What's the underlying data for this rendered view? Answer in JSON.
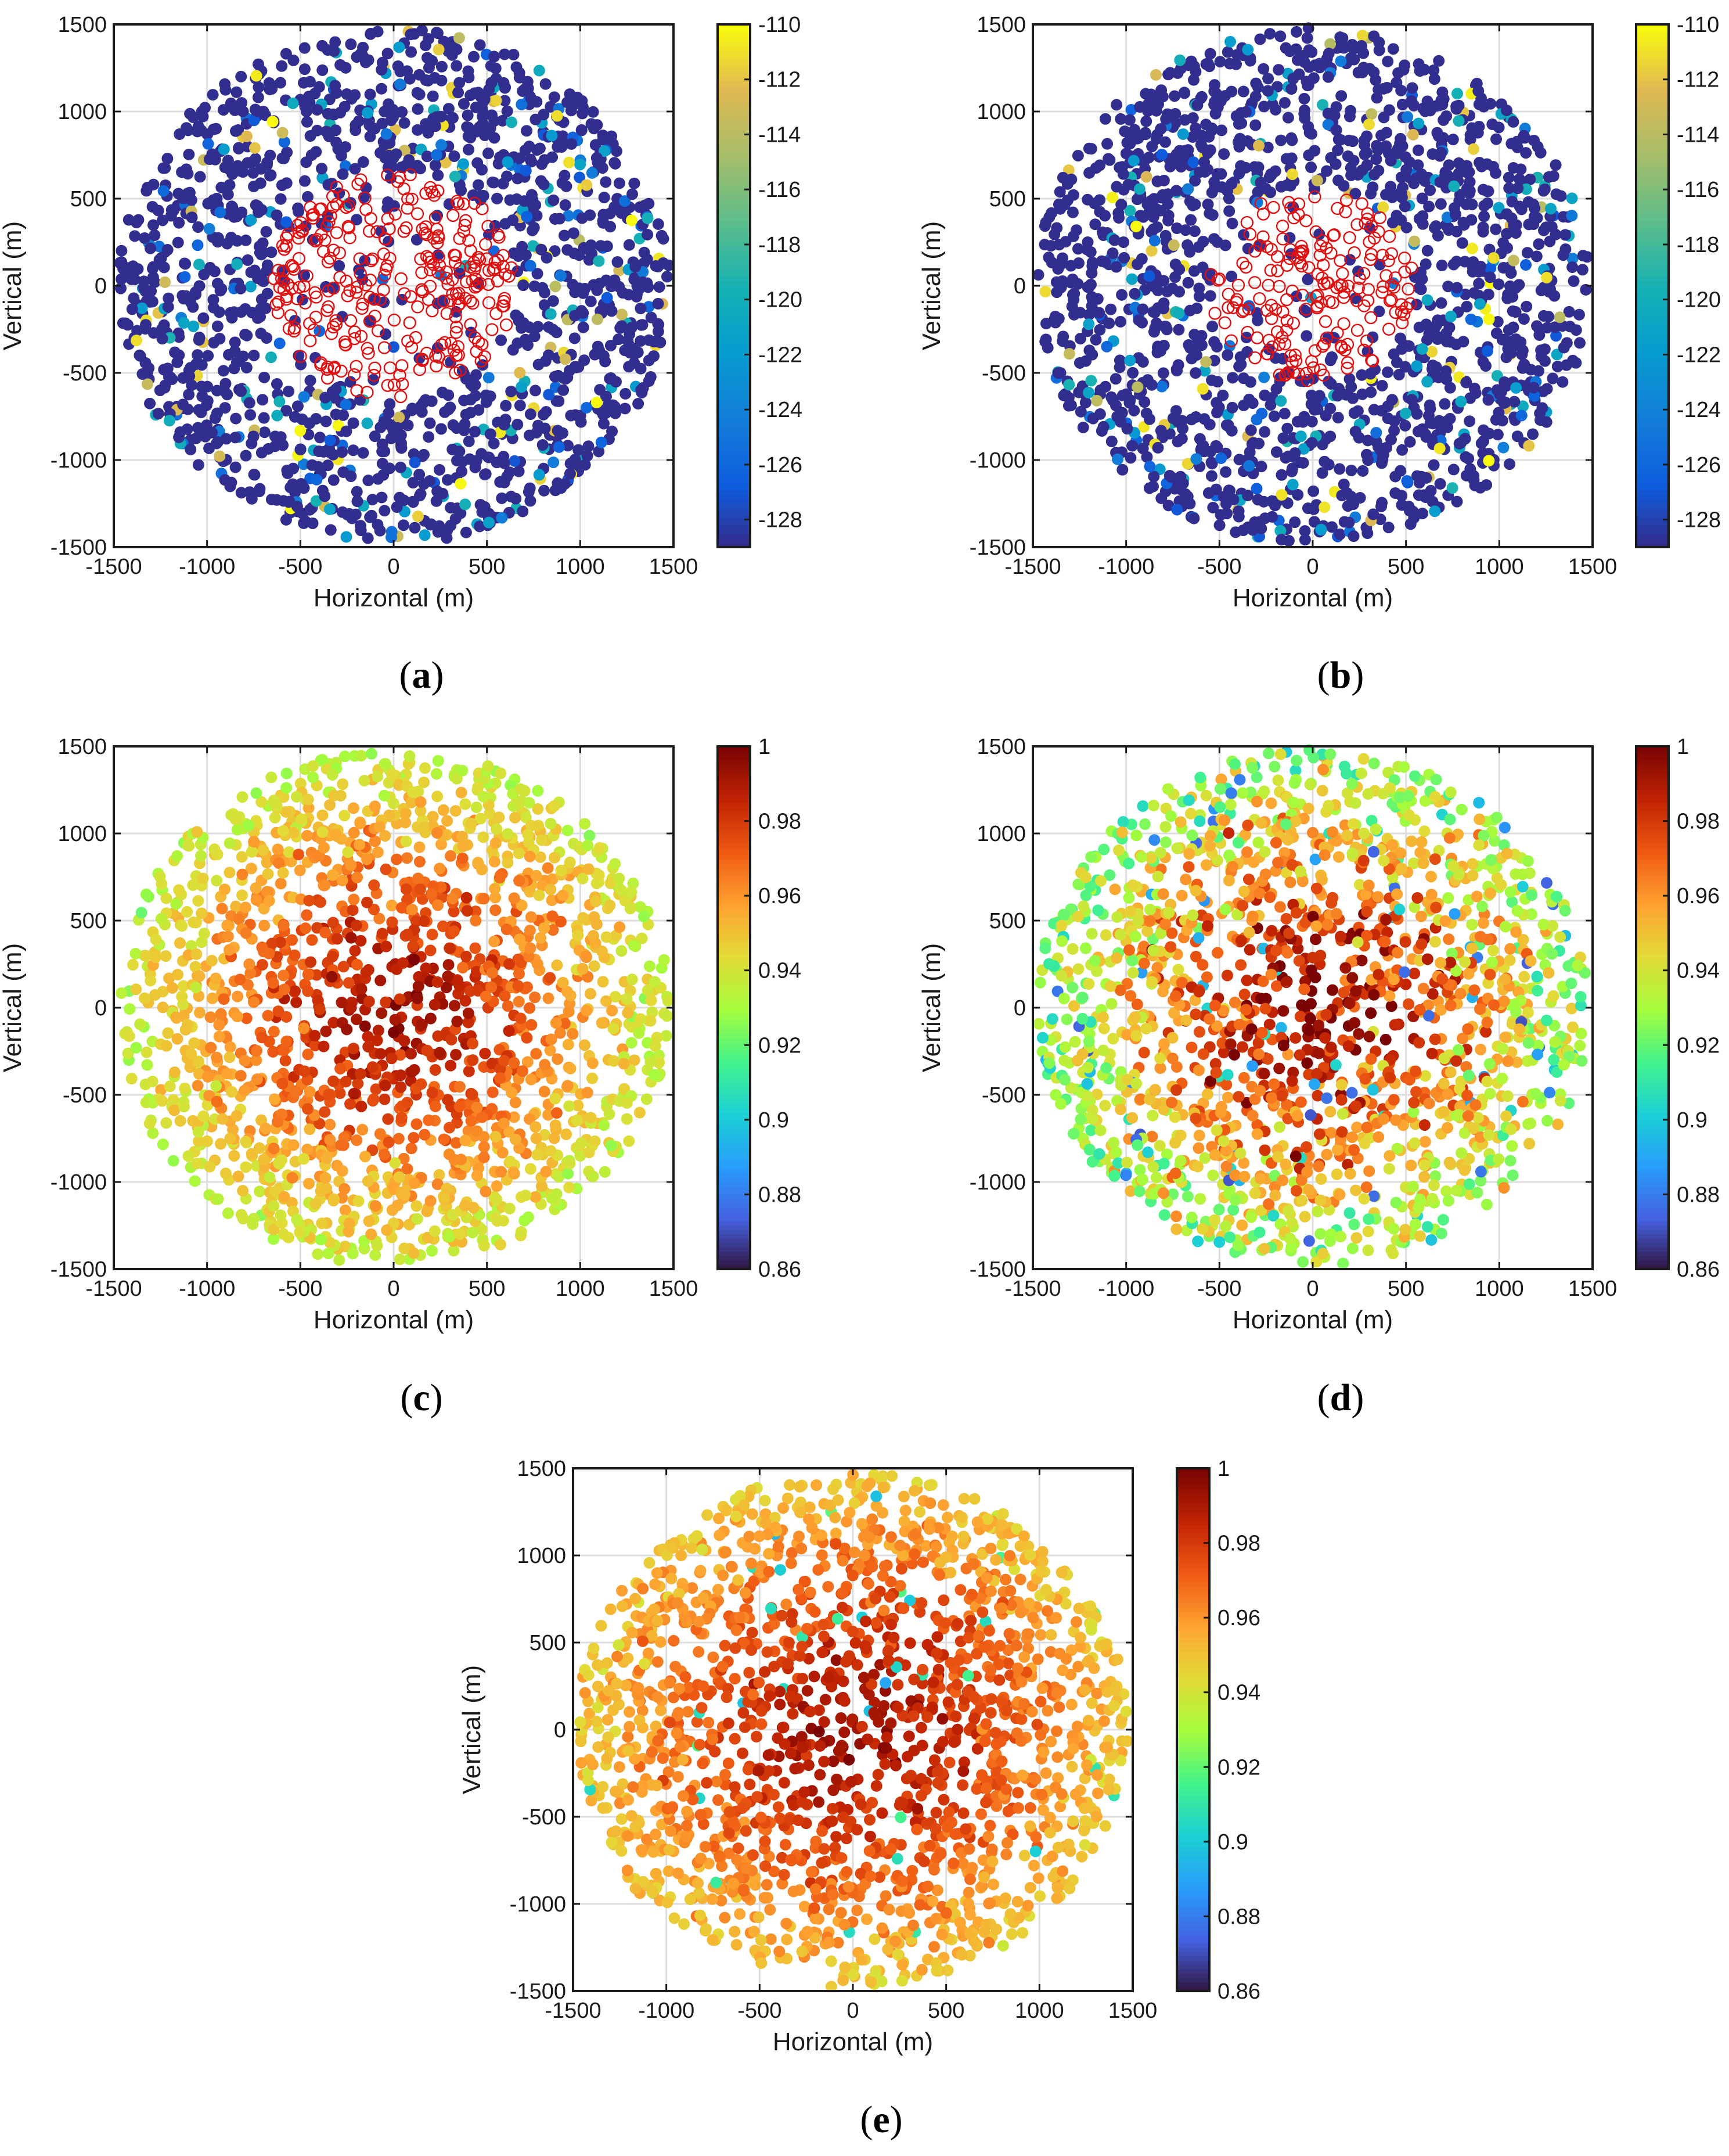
{
  "chart_data": [
    {
      "id": "a",
      "type": "scatter",
      "panel_label": "a",
      "xlabel": "Horizontal (m)",
      "ylabel": "Vertical (m)",
      "xlim": [
        -1500,
        1500
      ],
      "ylim": [
        -1500,
        1500
      ],
      "xticks": [
        "-1500",
        "-1000",
        "-500",
        "0",
        "500",
        "1000",
        "1500"
      ],
      "yticks": [
        "-1500",
        "-1000",
        "-500",
        "0",
        "500",
        "1000",
        "1500"
      ],
      "grid": true,
      "colormap": "parula",
      "colorbar": {
        "min": -129,
        "max": -110,
        "ticks": [
          "-110",
          "-112",
          "-114",
          "-116",
          "-118",
          "-120",
          "-122",
          "-124",
          "-126",
          "-128"
        ]
      },
      "markers": "filled dots (received power); red open circles mark users near the center",
      "point_count_approx": 1800,
      "value_distribution": "mostly at -128 (dark blue), scattered points up to -110 (yellow)",
      "open_circle_radius_m": 650
    },
    {
      "id": "b",
      "type": "scatter",
      "panel_label": "b",
      "xlabel": "Horizontal (m)",
      "ylabel": "Vertical (m)",
      "xlim": [
        -1500,
        1500
      ],
      "ylim": [
        -1500,
        1500
      ],
      "xticks": [
        "-1500",
        "-1000",
        "-500",
        "0",
        "500",
        "1000",
        "1500"
      ],
      "yticks": [
        "-1500",
        "-1000",
        "-500",
        "0",
        "500",
        "1000",
        "1500"
      ],
      "grid": true,
      "colormap": "parula",
      "colorbar": {
        "min": -129,
        "max": -110,
        "ticks": [
          "-110",
          "-112",
          "-114",
          "-116",
          "-118",
          "-120",
          "-122",
          "-124",
          "-126",
          "-128"
        ]
      },
      "markers": "filled dots (received power); red open circles mark users near the center",
      "point_count_approx": 1800,
      "value_distribution": "mostly at -128 (dark blue), scattered points up to -110 (yellow)",
      "open_circle_radius_m": 550
    },
    {
      "id": "c",
      "type": "scatter",
      "panel_label": "c",
      "xlabel": "Horizontal (m)",
      "ylabel": "Vertical (m)",
      "xlim": [
        -1500,
        1500
      ],
      "ylim": [
        -1500,
        1500
      ],
      "xticks": [
        "-1500",
        "-1000",
        "-500",
        "0",
        "500",
        "1000",
        "1500"
      ],
      "yticks": [
        "-1500",
        "-1000",
        "-500",
        "0",
        "500",
        "1000",
        "1500"
      ],
      "grid": true,
      "colormap": "turbo",
      "colorbar": {
        "min": 0.86,
        "max": 1,
        "ticks": [
          "1",
          "0.98",
          "0.96",
          "0.94",
          "0.92",
          "0.9",
          "0.88",
          "0.86"
        ]
      },
      "point_count_approx": 1800,
      "value_distribution": "about 0.995 at the center falling radially to about 0.93 at the edge",
      "noise": 0.006
    },
    {
      "id": "d",
      "type": "scatter",
      "panel_label": "d",
      "xlabel": "Horizontal (m)",
      "ylabel": "Vertical (m)",
      "xlim": [
        -1500,
        1500
      ],
      "ylim": [
        -1500,
        1500
      ],
      "xticks": [
        "-1500",
        "-1000",
        "-500",
        "0",
        "500",
        "1000",
        "1500"
      ],
      "yticks": [
        "-1500",
        "-1000",
        "-500",
        "0",
        "500",
        "1000",
        "1500"
      ],
      "grid": true,
      "colormap": "turbo",
      "colorbar": {
        "min": 0.86,
        "max": 1,
        "ticks": [
          "1",
          "0.98",
          "0.96",
          "0.94",
          "0.92",
          "0.9",
          "0.88",
          "0.86"
        ]
      },
      "point_count_approx": 1800,
      "value_distribution": "about 0.995 at the center falling to about 0.92 at the edge, more spread with values down to 0.86",
      "noise": 0.014
    },
    {
      "id": "e",
      "type": "scatter",
      "panel_label": "e",
      "xlabel": "Horizontal (m)",
      "ylabel": "Vertical (m)",
      "xlim": [
        -1500,
        1500
      ],
      "ylim": [
        -1500,
        1500
      ],
      "xticks": [
        "-1500",
        "-1000",
        "-500",
        "0",
        "500",
        "1000",
        "1500"
      ],
      "yticks": [
        "-1500",
        "-1000",
        "-500",
        "0",
        "500",
        "1000",
        "1500"
      ],
      "grid": true,
      "colormap": "turbo",
      "colorbar": {
        "min": 0.86,
        "max": 1,
        "ticks": [
          "1",
          "0.98",
          "0.96",
          "0.94",
          "0.92",
          "0.9",
          "0.88",
          "0.86"
        ]
      },
      "point_count_approx": 1800,
      "value_distribution": "about 0.995 at the center falling to about 0.945 at the edge, a few outliers near 0.9",
      "noise": 0.005
    }
  ],
  "labels": {
    "a": "a",
    "b": "b",
    "c": "c",
    "d": "d",
    "e": "e"
  }
}
